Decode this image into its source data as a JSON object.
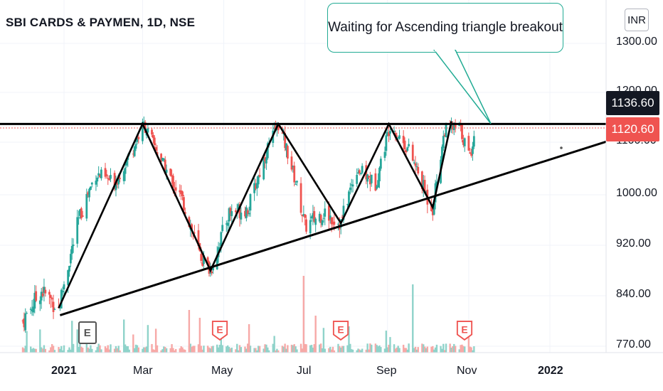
{
  "header": {
    "title": "SBI CARDS & PAYMEN, 1D, NSE",
    "currency": "INR"
  },
  "annotation": {
    "text": "Waiting for Ascending triangle breakout"
  },
  "price_labels": {
    "resistance": "1136.60",
    "last": "1120.60"
  },
  "colors": {
    "up": "#26a69a",
    "down": "#ef5350",
    "resistance_badge": "#131722",
    "last_badge": "#ef5350",
    "callout_border": "#22ab94"
  },
  "earnings_marker": "E",
  "chart_data": {
    "type": "candlestick",
    "symbol": "SBI CARDS & PAYMEN",
    "interval": "1D",
    "exchange": "NSE",
    "currency": "INR",
    "y_ticks": [
      "1300.00",
      "1200.00",
      "1100.00",
      "1000.00",
      "920.00",
      "840.00",
      "770.00"
    ],
    "y_tick_values": [
      1300,
      1200,
      1100,
      1000,
      920,
      840,
      770
    ],
    "x_ticks": [
      "2021",
      "Mar",
      "May",
      "Jul",
      "Sep",
      "Nov",
      "2022"
    ],
    "x_tick_dates": [
      "2021-01-01",
      "2021-03-01",
      "2021-05-01",
      "2021-07-01",
      "2021-09-01",
      "2021-11-01",
      "2022-01-01"
    ],
    "x_tick_bold": [
      true,
      false,
      false,
      false,
      false,
      false,
      true
    ],
    "resistance_level": 1136.6,
    "last_price": 1120.6,
    "approx_closes": [
      {
        "date": "2020-12-01",
        "close": 805
      },
      {
        "date": "2020-12-15",
        "close": 848
      },
      {
        "date": "2020-12-28",
        "close": 823
      },
      {
        "date": "2021-01-12",
        "close": 960
      },
      {
        "date": "2021-01-25",
        "close": 1040
      },
      {
        "date": "2021-02-08",
        "close": 1022
      },
      {
        "date": "2021-02-22",
        "close": 1090
      },
      {
        "date": "2021-03-02",
        "close": 1136
      },
      {
        "date": "2021-03-16",
        "close": 1060
      },
      {
        "date": "2021-04-01",
        "close": 985
      },
      {
        "date": "2021-04-13",
        "close": 905
      },
      {
        "date": "2021-04-21",
        "close": 880
      },
      {
        "date": "2021-05-05",
        "close": 972
      },
      {
        "date": "2021-05-20",
        "close": 980
      },
      {
        "date": "2021-06-03",
        "close": 1090
      },
      {
        "date": "2021-06-11",
        "close": 1136
      },
      {
        "date": "2021-06-18",
        "close": 1080
      },
      {
        "date": "2021-06-25",
        "close": 1015
      },
      {
        "date": "2021-07-01",
        "close": 950
      },
      {
        "date": "2021-07-15",
        "close": 972
      },
      {
        "date": "2021-07-28",
        "close": 955
      },
      {
        "date": "2021-08-09",
        "close": 1050
      },
      {
        "date": "2021-08-23",
        "close": 1020
      },
      {
        "date": "2021-09-03",
        "close": 1136
      },
      {
        "date": "2021-09-17",
        "close": 1085
      },
      {
        "date": "2021-10-01",
        "close": 995
      },
      {
        "date": "2021-10-05",
        "close": 980
      },
      {
        "date": "2021-10-14",
        "close": 1125
      },
      {
        "date": "2021-10-25",
        "close": 1130
      },
      {
        "date": "2021-11-02",
        "close": 1070
      },
      {
        "date": "2021-11-05",
        "close": 1120.6
      }
    ],
    "earnings_dates": [
      "2021-01-18",
      "2021-04-28",
      "2021-07-28",
      "2021-10-29"
    ],
    "earnings_past": [
      true,
      false,
      false,
      false
    ]
  }
}
